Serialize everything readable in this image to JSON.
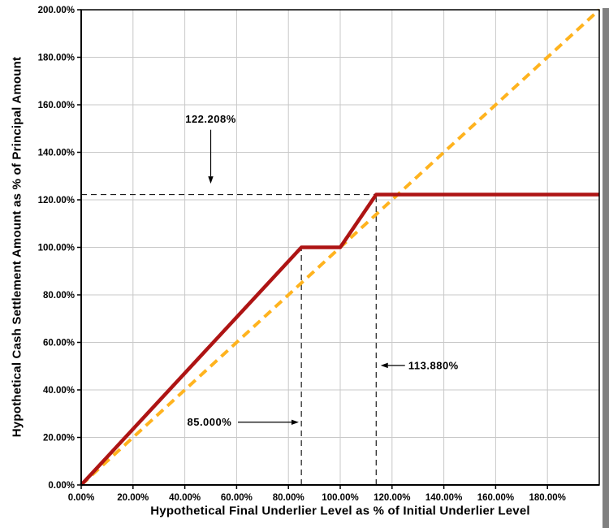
{
  "chart_data": {
    "type": "line",
    "title": "",
    "xlabel": "Hypothetical Final Underlier Level as % of Initial Underlier Level",
    "ylabel": "Hypothetical Cash Settlement Amount as % of Principal Amount",
    "xlim": [
      0,
      200
    ],
    "ylim": [
      0,
      200
    ],
    "x_ticks": [
      0,
      20,
      40,
      60,
      80,
      100,
      120,
      140,
      160,
      180
    ],
    "y_ticks": [
      0,
      20,
      40,
      60,
      80,
      100,
      120,
      140,
      160,
      180,
      200
    ],
    "x_tick_labels": [
      "0.00%",
      "20.00%",
      "40.00%",
      "60.00%",
      "80.00%",
      "100.00%",
      "120.00%",
      "140.00%",
      "160.00%",
      "180.00%"
    ],
    "y_tick_labels": [
      "0.00%",
      "20.00%",
      "40.00%",
      "60.00%",
      "80.00%",
      "100.00%",
      "120.00%",
      "140.00%",
      "160.00%",
      "180.00%",
      "200.00%"
    ],
    "grid": true,
    "grid_color": "#c8c8c8",
    "guide_color": "#1a1a1a",
    "shadow_color": "#808080",
    "legend": "none",
    "series": [
      {
        "name": "underlier-reference-line",
        "color": "#FFB31E",
        "dash": "11 7",
        "width": 4,
        "points": [
          [
            0,
            0
          ],
          [
            200,
            200
          ]
        ]
      },
      {
        "name": "cash-settlement-payoff-line",
        "color": "#AE1414",
        "dash": null,
        "width": 4.5,
        "points": [
          [
            0,
            0
          ],
          [
            85,
            100
          ],
          [
            100,
            100
          ],
          [
            113.88,
            122.208
          ],
          [
            200,
            122.208
          ]
        ]
      }
    ],
    "guides": [
      {
        "orient": "h",
        "y": 122.208,
        "x1": 0,
        "x2": 113.88
      },
      {
        "orient": "v",
        "x": 85,
        "y1": 0,
        "y2": 100
      },
      {
        "orient": "v",
        "x": 113.88,
        "y1": 0,
        "y2": 122.208
      }
    ],
    "annotations": [
      {
        "label": "122.208%",
        "text_x": 50,
        "text_y": 152.5,
        "arrow": {
          "x1": 50,
          "y1": 149.5,
          "x2": 50,
          "y2": 126.8
        }
      },
      {
        "label": "113.880%",
        "text_x": 136,
        "text_y": 48.8,
        "arrow": {
          "x1": 125,
          "y1": 50.3,
          "x2": 115.6,
          "y2": 50.3
        }
      },
      {
        "label": "85.000%",
        "text_x": 49.5,
        "text_y": 25,
        "arrow": {
          "x1": 60.5,
          "y1": 26.4,
          "x2": 84,
          "y2": 26.4
        }
      }
    ]
  }
}
